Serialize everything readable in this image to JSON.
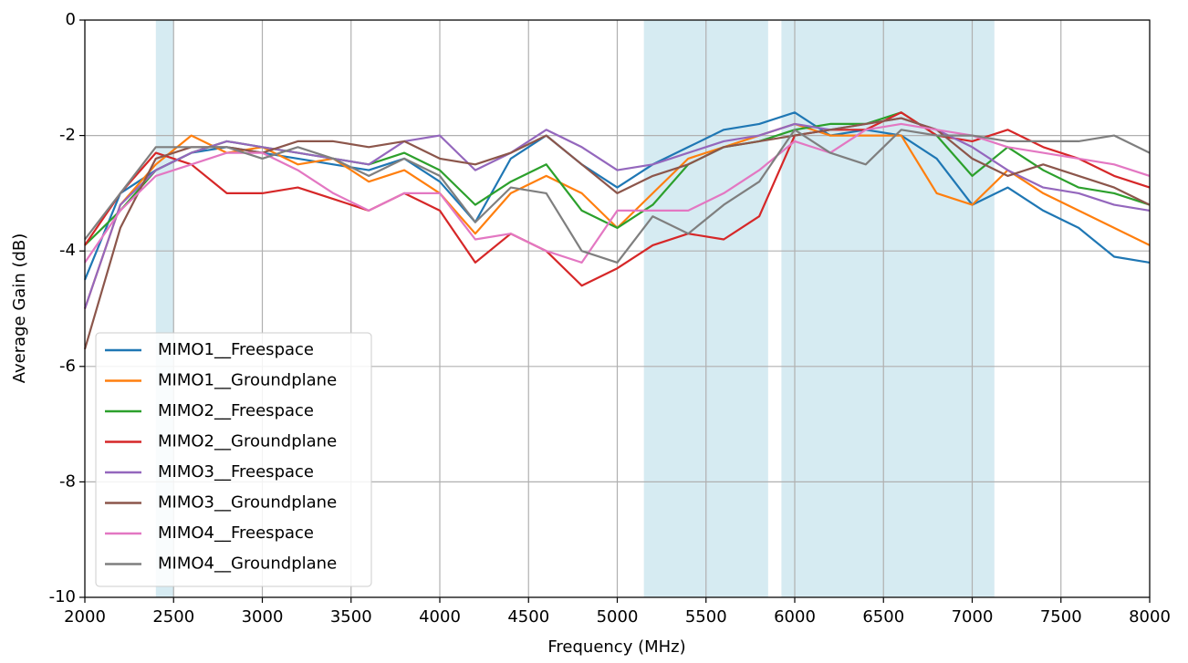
{
  "chart_data": {
    "type": "line",
    "xlabel": "Frequency (MHz)",
    "ylabel": "Average Gain (dB)",
    "x": [
      2000,
      2200,
      2400,
      2600,
      2800,
      3000,
      3200,
      3400,
      3600,
      3800,
      4000,
      4200,
      4400,
      4600,
      4800,
      5000,
      5200,
      5400,
      5600,
      5800,
      6000,
      6200,
      6400,
      6600,
      6800,
      7000,
      7200,
      7400,
      7600,
      7800,
      8000
    ],
    "series": [
      {
        "name": "MIMO1__Freespace",
        "color": "#1f77b4",
        "values": [
          -4.5,
          -3.0,
          -2.6,
          -2.3,
          -2.2,
          -2.3,
          -2.4,
          -2.5,
          -2.6,
          -2.4,
          -2.8,
          -3.5,
          -2.4,
          -2.0,
          -2.5,
          -2.9,
          -2.5,
          -2.2,
          -1.9,
          -1.8,
          -1.6,
          -2.0,
          -1.9,
          -2.0,
          -2.4,
          -3.2,
          -2.9,
          -3.3,
          -3.6,
          -4.1,
          -4.2
        ]
      },
      {
        "name": "MIMO1__Groundplane",
        "color": "#ff7f0e",
        "values": [
          -5.0,
          -3.2,
          -2.5,
          -2.0,
          -2.3,
          -2.2,
          -2.5,
          -2.4,
          -2.8,
          -2.6,
          -3.0,
          -3.7,
          -3.0,
          -2.7,
          -3.0,
          -3.6,
          -3.0,
          -2.4,
          -2.2,
          -2.0,
          -1.8,
          -2.0,
          -2.0,
          -2.0,
          -3.0,
          -3.2,
          -2.6,
          -3.0,
          -3.3,
          -3.6,
          -3.9
        ]
      },
      {
        "name": "MIMO2__Freespace",
        "color": "#2ca02c",
        "values": [
          -3.9,
          -3.3,
          -2.6,
          -2.3,
          -2.1,
          -2.2,
          -2.3,
          -2.4,
          -2.5,
          -2.3,
          -2.6,
          -3.2,
          -2.8,
          -2.5,
          -3.3,
          -3.6,
          -3.2,
          -2.5,
          -2.2,
          -2.1,
          -1.9,
          -1.8,
          -1.8,
          -1.6,
          -2.0,
          -2.7,
          -2.2,
          -2.6,
          -2.9,
          -3.0,
          -3.2
        ]
      },
      {
        "name": "MIMO2__Groundplane",
        "color": "#d62728",
        "values": [
          -3.9,
          -3.0,
          -2.3,
          -2.5,
          -3.0,
          -3.0,
          -2.9,
          -3.1,
          -3.3,
          -3.0,
          -3.3,
          -4.2,
          -3.7,
          -4.0,
          -4.6,
          -4.3,
          -3.9,
          -3.7,
          -3.8,
          -3.4,
          -2.0,
          -1.9,
          -1.9,
          -1.6,
          -2.0,
          -2.1,
          -1.9,
          -2.2,
          -2.4,
          -2.7,
          -2.9
        ]
      },
      {
        "name": "MIMO3__Freespace",
        "color": "#9467bd",
        "values": [
          -5.0,
          -3.2,
          -2.6,
          -2.3,
          -2.1,
          -2.2,
          -2.3,
          -2.4,
          -2.5,
          -2.1,
          -2.0,
          -2.6,
          -2.3,
          -1.9,
          -2.2,
          -2.6,
          -2.5,
          -2.3,
          -2.1,
          -2.0,
          -1.8,
          -1.9,
          -1.8,
          -1.7,
          -1.9,
          -2.2,
          -2.6,
          -2.9,
          -3.0,
          -3.2,
          -3.3
        ]
      },
      {
        "name": "MIMO3__Groundplane",
        "color": "#8c564b",
        "values": [
          -5.7,
          -3.6,
          -2.4,
          -2.2,
          -2.2,
          -2.3,
          -2.1,
          -2.1,
          -2.2,
          -2.1,
          -2.4,
          -2.5,
          -2.3,
          -2.0,
          -2.5,
          -3.0,
          -2.7,
          -2.5,
          -2.2,
          -2.1,
          -2.0,
          -1.9,
          -1.8,
          -1.7,
          -1.9,
          -2.4,
          -2.7,
          -2.5,
          -2.7,
          -2.9,
          -3.2
        ]
      },
      {
        "name": "MIMO4__Freespace",
        "color": "#e377c2",
        "values": [
          -4.2,
          -3.3,
          -2.7,
          -2.5,
          -2.3,
          -2.3,
          -2.6,
          -3.0,
          -3.3,
          -3.0,
          -3.0,
          -3.8,
          -3.7,
          -4.0,
          -4.2,
          -3.3,
          -3.3,
          -3.3,
          -3.0,
          -2.6,
          -2.1,
          -2.3,
          -1.9,
          -1.8,
          -1.9,
          -2.0,
          -2.2,
          -2.3,
          -2.4,
          -2.5,
          -2.7
        ]
      },
      {
        "name": "MIMO4__Groundplane",
        "color": "#7f7f7f",
        "values": [
          -3.8,
          -3.0,
          -2.2,
          -2.2,
          -2.2,
          -2.4,
          -2.2,
          -2.4,
          -2.7,
          -2.4,
          -2.7,
          -3.5,
          -2.9,
          -3.0,
          -4.0,
          -4.2,
          -3.4,
          -3.7,
          -3.2,
          -2.8,
          -1.9,
          -2.3,
          -2.5,
          -1.9,
          -2.0,
          -2.0,
          -2.1,
          -2.1,
          -2.1,
          -2.0,
          -2.3
        ]
      }
    ],
    "bands": [
      [
        2400,
        2500
      ],
      [
        5150,
        5850
      ],
      [
        5925,
        7125
      ]
    ],
    "band_color": "#add8e6",
    "xlim": [
      2000,
      8000
    ],
    "xticks": [
      2000,
      2500,
      3000,
      3500,
      4000,
      4500,
      5000,
      5500,
      6000,
      6500,
      7000,
      7500,
      8000
    ],
    "ylim": [
      -10,
      0
    ],
    "yticks": [
      -10,
      -8,
      -6,
      -4,
      -2,
      0
    ],
    "grid": true,
    "legend": "lower left"
  }
}
